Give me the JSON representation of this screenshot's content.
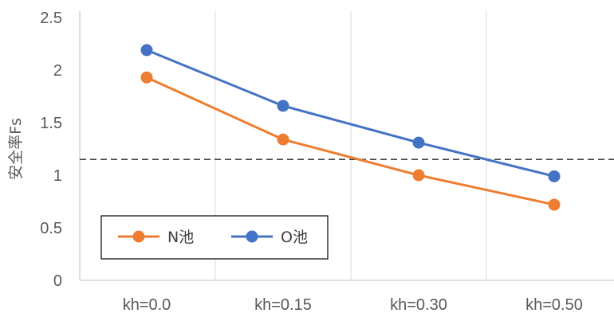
{
  "chart_data": {
    "type": "line",
    "categories": [
      "kh=0.0",
      "kh=0.15",
      "kh=0.30",
      "kh=0.50"
    ],
    "series": [
      {
        "name": "N池",
        "values": [
          1.93,
          1.34,
          1.0,
          0.72
        ],
        "color": "#ED7D31"
      },
      {
        "name": "O池",
        "values": [
          2.19,
          1.66,
          1.31,
          0.99
        ],
        "color": "#4472C4"
      }
    ],
    "reference_line": {
      "value": 1.15,
      "style": "dashed",
      "color": "#404040"
    },
    "ylabel": "安全率Fs",
    "xlabel": "",
    "title": "",
    "ylim": [
      0,
      2.5
    ],
    "yticks": [
      "0",
      "0.5",
      "1",
      "1.5",
      "2",
      "2.5"
    ],
    "grid": "vertical",
    "legend_position": "bottom-left"
  }
}
